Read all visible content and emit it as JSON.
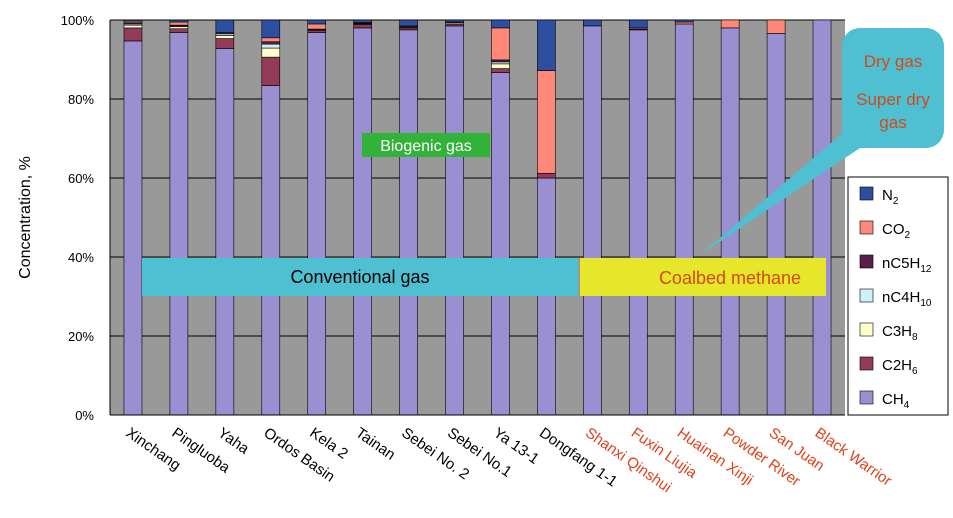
{
  "chart_data": {
    "type": "bar",
    "stacked": true,
    "ylabel": "Concentration, %",
    "ylim": [
      0,
      100
    ],
    "y_ticks": [
      "0%",
      "20%",
      "40%",
      "60%",
      "80%",
      "100%"
    ],
    "grid": true,
    "legend_position": "right",
    "categories": [
      "Xinchang",
      "Pingluoba",
      "Yaha",
      "Ordos Basin",
      "Kela 2",
      "Tainan",
      "Sebei No. 2",
      "Sebei No.1",
      "Ya 13-1",
      "Dongfang 1-1",
      "Shanxi Qinshui",
      "Fuxin Liujia",
      "Huainan Xinji",
      "Powder River",
      "San Juan",
      "Black Warrior"
    ],
    "highlighted_categories": [
      "Shanxi Qinshui",
      "Fuxin Liujia",
      "Huainan Xinji",
      "Powder River",
      "San Juan",
      "Black Warrior"
    ],
    "series": [
      {
        "name": "CH4",
        "base": "CH",
        "sub": "4",
        "color": "#9a8fd0",
        "values": [
          94.7,
          96.8,
          92.8,
          83.4,
          96.8,
          98.0,
          97.5,
          98.5,
          86.7,
          60.0,
          98.5,
          97.5,
          99.0,
          98.0,
          96.6,
          100.0
        ]
      },
      {
        "name": "C2H6",
        "base": "C2H",
        "sub": "6",
        "color": "#933b58",
        "values": [
          3.3,
          1.0,
          2.5,
          7.2,
          0.5,
          0.8,
          0.5,
          0.5,
          1.0,
          1.2,
          0,
          0.2,
          0,
          0,
          0,
          0
        ]
      },
      {
        "name": "C3H8",
        "base": "C3H",
        "sub": "8",
        "color": "#ffffcc",
        "values": [
          0.7,
          0.5,
          0.8,
          2.3,
          0.2,
          0.2,
          0.2,
          0.3,
          1.2,
          0,
          0,
          0,
          0,
          0,
          0,
          0
        ]
      },
      {
        "name": "nC4H10",
        "base": "nC4H",
        "sub": "10",
        "color": "#ccf2f8",
        "values": [
          0.3,
          0.2,
          0.4,
          1.0,
          0.1,
          0.1,
          0.1,
          0,
          0.5,
          0,
          0,
          0,
          0,
          0,
          0,
          0
        ]
      },
      {
        "name": "nC5H12",
        "base": "nC5H",
        "sub": "12",
        "color": "#5a1f4a",
        "values": [
          0.3,
          0.2,
          0.3,
          0.6,
          0.1,
          0.1,
          0,
          0,
          0.5,
          0,
          0,
          0,
          0,
          0,
          0,
          0
        ]
      },
      {
        "name": "CO2",
        "base": "CO",
        "sub": "2",
        "color": "#ff8878",
        "values": [
          0.4,
          0.8,
          0,
          1.0,
          1.3,
          0.2,
          0.2,
          0.2,
          8.1,
          26.0,
          0,
          0.3,
          0.5,
          2.0,
          3.4,
          0
        ]
      },
      {
        "name": "N2",
        "base": "N",
        "sub": "2",
        "color": "#2e4fa0",
        "values": [
          0.3,
          0.5,
          3.2,
          4.5,
          1.0,
          0.6,
          1.5,
          0.5,
          2.0,
          12.8,
          1.5,
          2.0,
          0.5,
          0,
          0,
          0
        ]
      }
    ],
    "annotations": {
      "biogenic": "Biogenic gas",
      "conventional": "Conventional gas",
      "coalbed": "Coalbed methane",
      "dry": "Dry gas",
      "super_dry_1": "Super dry",
      "super_dry_2": "gas"
    },
    "colors": {
      "plot_bg": "#999999",
      "grid": "#000000",
      "highlight_label": "#e0401a",
      "normal_label": "#000000",
      "conventional_box": "#4fbfd2",
      "coalbed_box": "#e6e62a",
      "coalbed_text": "#d24a1a",
      "biogenic_box": "#33b23a",
      "biogenic_text": "#ffffff",
      "callout_box": "#4fbfd2",
      "callout_text": "#d24a1a"
    }
  }
}
